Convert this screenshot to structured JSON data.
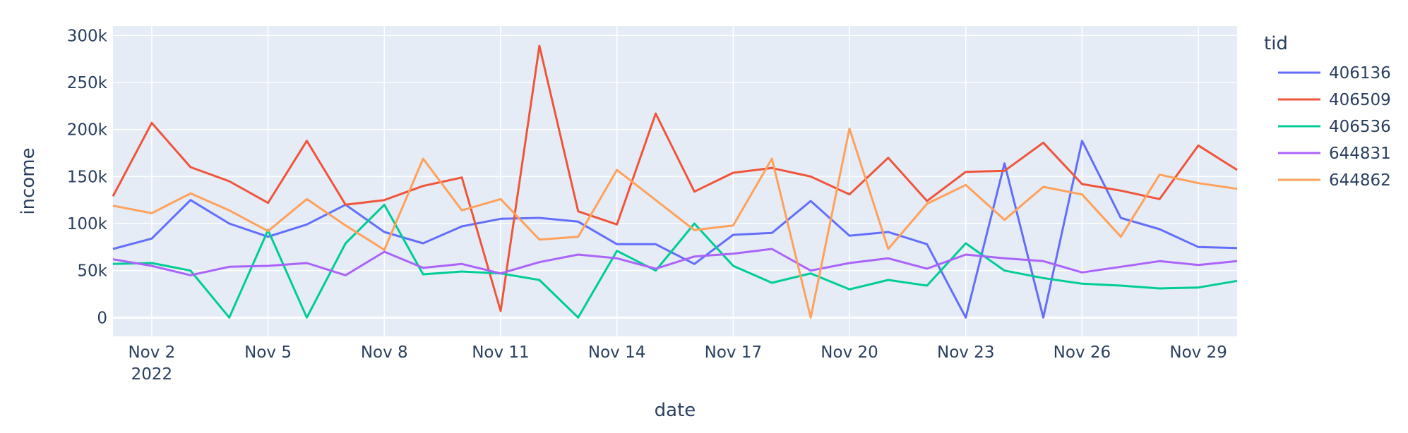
{
  "chart_data": {
    "type": "line",
    "xlabel": "date",
    "ylabel": "income",
    "legend_title": "tid",
    "legend_position": "right",
    "grid": true,
    "plot_bg": "#e5ecf6",
    "x_range": [
      "2022-11-01",
      "2022-11-30"
    ],
    "ylim": [
      -20000,
      310000
    ],
    "x_ticks": [
      {
        "date": "2022-11-02",
        "label": "Nov 2",
        "sublabel": "2022"
      },
      {
        "date": "2022-11-05",
        "label": "Nov 5"
      },
      {
        "date": "2022-11-08",
        "label": "Nov 8"
      },
      {
        "date": "2022-11-11",
        "label": "Nov 11"
      },
      {
        "date": "2022-11-14",
        "label": "Nov 14"
      },
      {
        "date": "2022-11-17",
        "label": "Nov 17"
      },
      {
        "date": "2022-11-20",
        "label": "Nov 20"
      },
      {
        "date": "2022-11-23",
        "label": "Nov 23"
      },
      {
        "date": "2022-11-26",
        "label": "Nov 26"
      },
      {
        "date": "2022-11-29",
        "label": "Nov 29"
      }
    ],
    "y_ticks": [
      {
        "value": 0,
        "label": "0"
      },
      {
        "value": 50000,
        "label": "50k"
      },
      {
        "value": 100000,
        "label": "100k"
      },
      {
        "value": 150000,
        "label": "150k"
      },
      {
        "value": 200000,
        "label": "200k"
      },
      {
        "value": 250000,
        "label": "250k"
      },
      {
        "value": 300000,
        "label": "300k"
      }
    ],
    "x": [
      "2022-11-01",
      "2022-11-02",
      "2022-11-03",
      "2022-11-04",
      "2022-11-05",
      "2022-11-06",
      "2022-11-07",
      "2022-11-08",
      "2022-11-09",
      "2022-11-10",
      "2022-11-11",
      "2022-11-12",
      "2022-11-13",
      "2022-11-14",
      "2022-11-15",
      "2022-11-16",
      "2022-11-17",
      "2022-11-18",
      "2022-11-19",
      "2022-11-20",
      "2022-11-21",
      "2022-11-22",
      "2022-11-23",
      "2022-11-24",
      "2022-11-25",
      "2022-11-26",
      "2022-11-27",
      "2022-11-28",
      "2022-11-29",
      "2022-11-30"
    ],
    "series": [
      {
        "name": "406136",
        "color": "#636efa",
        "values": [
          73000,
          84000,
          125000,
          100000,
          86000,
          99000,
          120000,
          91000,
          79000,
          97000,
          105000,
          106000,
          102000,
          78000,
          78000,
          57000,
          88000,
          90000,
          124000,
          87000,
          91000,
          78000,
          0,
          164000,
          0,
          188000,
          106000,
          94000,
          75000,
          74000
        ]
      },
      {
        "name": "406509",
        "color": "#ef553b",
        "values": [
          129000,
          207000,
          160000,
          145000,
          122000,
          188000,
          120000,
          125000,
          140000,
          149000,
          7000,
          289000,
          113000,
          99000,
          217000,
          134000,
          154000,
          159000,
          150000,
          131000,
          170000,
          124000,
          155000,
          156000,
          186000,
          142000,
          135000,
          126000,
          183000,
          157000
        ]
      },
      {
        "name": "406536",
        "color": "#00cc96",
        "values": [
          57000,
          58000,
          50000,
          0,
          93000,
          0,
          79000,
          120000,
          46000,
          49000,
          47000,
          40000,
          0,
          71000,
          50000,
          100000,
          55000,
          37000,
          47000,
          30000,
          40000,
          34000,
          79000,
          50000,
          42000,
          36000,
          34000,
          31000,
          32000,
          39000
        ]
      },
      {
        "name": "644831",
        "color": "#ab63fa",
        "values": [
          62000,
          55000,
          45000,
          54000,
          55000,
          58000,
          45000,
          70000,
          53000,
          57000,
          47000,
          59000,
          67000,
          63000,
          52000,
          65000,
          68000,
          73000,
          50000,
          58000,
          63000,
          52000,
          67000,
          63000,
          60000,
          48000,
          54000,
          60000,
          56000,
          60000
        ]
      },
      {
        "name": "644862",
        "color": "#ffa15a",
        "values": [
          119000,
          111000,
          132000,
          114000,
          92000,
          126000,
          98000,
          72000,
          169000,
          114000,
          126000,
          83000,
          86000,
          157000,
          125000,
          93000,
          98000,
          169000,
          0,
          201000,
          73000,
          121000,
          141000,
          104000,
          139000,
          131000,
          86000,
          152000,
          143000,
          137000
        ]
      }
    ]
  }
}
